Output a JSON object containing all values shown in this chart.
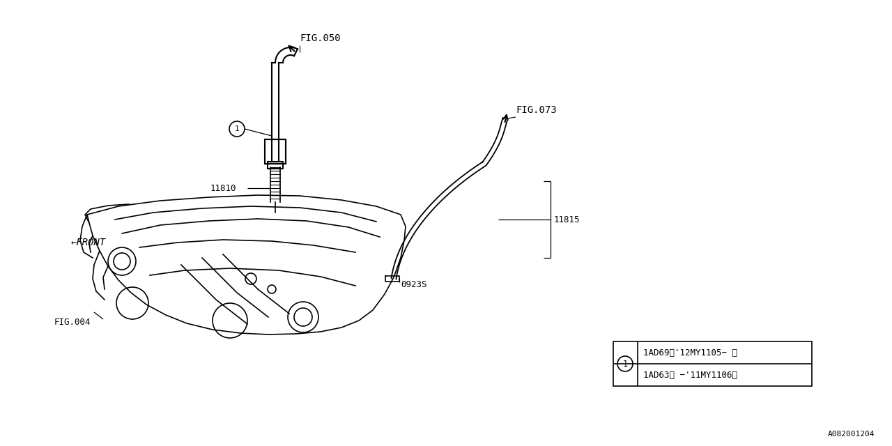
{
  "bg_color": "#ffffff",
  "line_color": "#000000",
  "fig_size": [
    12.8,
    6.4
  ],
  "dpi": 100,
  "labels": {
    "fig050": "FIG.050",
    "fig073": "FIG.073",
    "fig004": "FIG.004",
    "part11810": "11810",
    "part11815": "11815",
    "part0923s": "0923S",
    "front": "←FRONT",
    "diagram_id": "A082001204",
    "circle_label": "1"
  },
  "table": {
    "rows": [
      "1AD63（ −'11MY1106）",
      "1AD69（'12MY1105− ）"
    ],
    "circle_num": "1"
  }
}
